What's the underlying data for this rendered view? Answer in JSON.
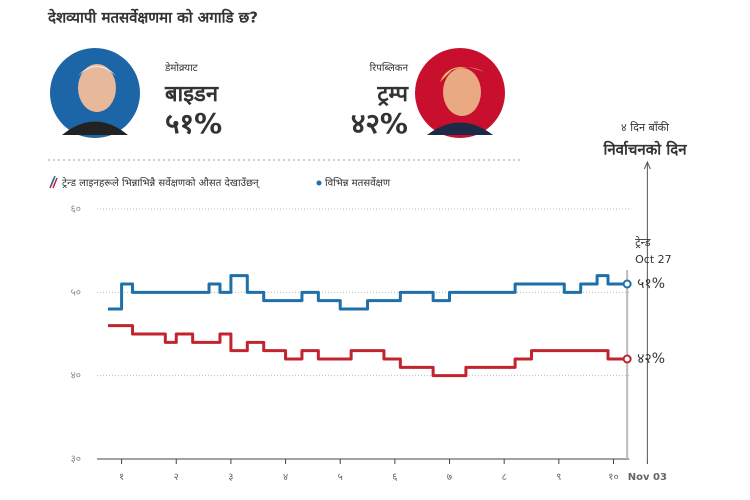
{
  "header": {
    "title": "देशव्यापी मतसर्वेक्षणमा को अगाडि छ?"
  },
  "candidates": [
    {
      "party": "डेमोक्र्याट",
      "name": "बाइडन",
      "share": "५१%",
      "color": "#1f6fa8"
    },
    {
      "party": "रिपब्लिकन",
      "name": "ट्रम्प",
      "share": "४२%",
      "color": "#c0242f"
    }
  ],
  "legend": [
    "ट्रेन्ड लाइनहरूले भिन्नाभिन्नै सर्वेक्षणको औसत देखाउँछन्",
    "विभिन्न मतसर्वेक्षण"
  ],
  "chart_data": {
    "type": "line",
    "annotations": {
      "days_left": "४ दिन बाँकी",
      "election_day": "निर्वाचनको दिन",
      "trend": "ट्रेन्ड",
      "trend_date": "Oct 27",
      "trend_x": 10.25
    },
    "x": [
      0.75,
      1.0,
      1.2,
      1.5,
      1.8,
      2.0,
      2.3,
      2.6,
      2.8,
      3.0,
      3.2,
      3.3,
      3.6,
      4.0,
      4.3,
      4.6,
      5.0,
      5.2,
      5.5,
      5.8,
      6.1,
      6.4,
      6.7,
      7.0,
      7.3,
      7.6,
      7.9,
      8.2,
      8.5,
      8.8,
      9.1,
      9.4,
      9.7,
      9.9,
      10.25
    ],
    "series": [
      {
        "color": "#1f6fa8",
        "end_label": "५१%",
        "values": [
          48,
          51,
          50,
          50,
          50,
          50,
          50,
          51,
          50,
          52,
          52,
          50,
          49,
          49,
          50,
          49,
          48,
          48,
          49,
          49,
          50,
          50,
          49,
          50,
          50,
          50,
          50,
          51,
          51,
          51,
          50,
          51,
          52,
          51,
          51
        ]
      },
      {
        "color": "#c0242f",
        "end_label": "४२%",
        "values": [
          46,
          46,
          45,
          45,
          44,
          45,
          44,
          44,
          45,
          43,
          43,
          44,
          43,
          42,
          43,
          42,
          42,
          43,
          43,
          42,
          41,
          41,
          40,
          40,
          41,
          41,
          41,
          42,
          43,
          43,
          43,
          43,
          43,
          42,
          42
        ]
      }
    ],
    "xlim": [
      0.55,
      11.4
    ],
    "xticks": [
      {
        "value": 1,
        "label": "१"
      },
      {
        "value": 2,
        "label": "२"
      },
      {
        "value": 3,
        "label": "३"
      },
      {
        "value": 4,
        "label": "४"
      },
      {
        "value": 5,
        "label": "५"
      },
      {
        "value": 6,
        "label": "६"
      },
      {
        "value": 7,
        "label": "७"
      },
      {
        "value": 8,
        "label": "८"
      },
      {
        "value": 9,
        "label": "९"
      },
      {
        "value": 10,
        "label": "१०"
      },
      {
        "value": 10.62,
        "label": "Nov 03"
      }
    ],
    "ylim": [
      30,
      60
    ],
    "yticks": [
      {
        "value": 30,
        "label": "३०"
      },
      {
        "value": 40,
        "label": "४०"
      },
      {
        "value": 50,
        "label": "५०"
      },
      {
        "value": 60,
        "label": "६०"
      }
    ],
    "grid": true
  }
}
